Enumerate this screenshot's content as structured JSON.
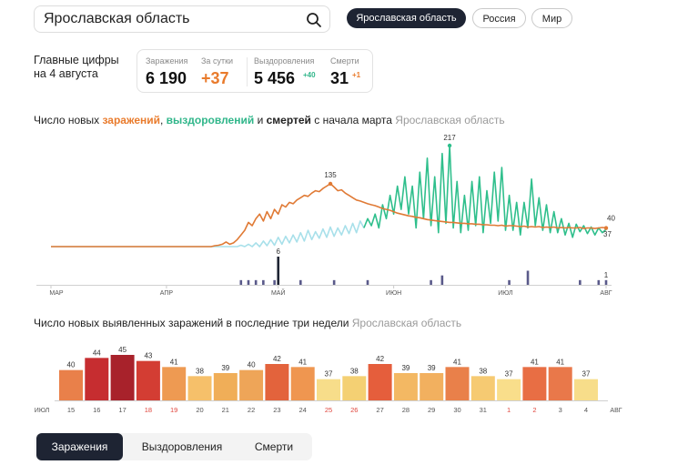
{
  "search": {
    "value": "Ярославская область"
  },
  "regions": [
    {
      "label": "Ярославская область"
    },
    {
      "label": "Россия"
    },
    {
      "label": "Мир"
    }
  ],
  "main_figures": {
    "title": "Главные цифры на 4 августа",
    "stats": [
      {
        "label": "Заражения",
        "value": "6 190",
        "delta": ""
      },
      {
        "label": "За сутки",
        "value": "+37",
        "delta": ""
      },
      {
        "label": "Выздоровления",
        "value": "5 456",
        "delta": "+40"
      },
      {
        "label": "Смерти",
        "value": "31",
        "delta": "+1"
      }
    ]
  },
  "chart1_title": {
    "p1": "Число новых ",
    "p2": "заражений",
    "p3": ", ",
    "p4": "выздоровлений",
    "p5": " и ",
    "p6": "смертей",
    "p7": " с начала марта ",
    "p8": "Ярославская область"
  },
  "chart2_title": {
    "p1": "Число новых выявленных заражений в последние три недели ",
    "p2": "Ярославская область"
  },
  "colors": {
    "infections": "#e07a35",
    "recoveries_first": "#a8e0ea",
    "recoveries_later": "#2fbf8c",
    "deaths": "#5a5a8a",
    "deaths_peak": "#1e2433"
  },
  "chart_data": [
    {
      "type": "line",
      "months": [
        "МАР",
        "АПР",
        "МАЙ",
        "ИЮН",
        "ИЮЛ",
        "АВГ"
      ],
      "series": [
        {
          "name": "заражений",
          "values": [
            0,
            0,
            0,
            0,
            0,
            0,
            0,
            0,
            0,
            0,
            0,
            0,
            0,
            0,
            0,
            0,
            0,
            0,
            0,
            0,
            0,
            0,
            0,
            0,
            0,
            0,
            0,
            0,
            0,
            0,
            0,
            0,
            0,
            0,
            0,
            0,
            0,
            0,
            0,
            0,
            0,
            0,
            0,
            0,
            2,
            3,
            5,
            10,
            5,
            8,
            15,
            25,
            35,
            52,
            45,
            60,
            70,
            55,
            75,
            60,
            80,
            70,
            90,
            85,
            95,
            92,
            100,
            105,
            110,
            108,
            115,
            120,
            118,
            125,
            130,
            135,
            128,
            120,
            122,
            115,
            110,
            105,
            100,
            98,
            95,
            92,
            90,
            88,
            85,
            82,
            80,
            78,
            75,
            72,
            70,
            68,
            66,
            65,
            63,
            62,
            60,
            58,
            57,
            56,
            55,
            54,
            53,
            52,
            52,
            51,
            50,
            50,
            49,
            49,
            48,
            48,
            47,
            47,
            46,
            46,
            45,
            46,
            44,
            45,
            45,
            44,
            43,
            44,
            42,
            43,
            42,
            43,
            41,
            42,
            41,
            42,
            40,
            41,
            40,
            41,
            40,
            40,
            41,
            39,
            40,
            40,
            39,
            40,
            41,
            40
          ]
        },
        {
          "name": "выздоровлений",
          "values": [
            0,
            0,
            0,
            0,
            0,
            0,
            0,
            0,
            0,
            0,
            0,
            0,
            0,
            0,
            0,
            0,
            0,
            0,
            0,
            0,
            0,
            0,
            0,
            0,
            0,
            0,
            0,
            0,
            0,
            0,
            0,
            0,
            0,
            0,
            0,
            0,
            0,
            0,
            0,
            0,
            0,
            0,
            0,
            0,
            0,
            0,
            0,
            0,
            0,
            0,
            0,
            3,
            0,
            5,
            0,
            8,
            0,
            12,
            2,
            15,
            3,
            20,
            5,
            22,
            8,
            25,
            10,
            30,
            12,
            35,
            15,
            32,
            18,
            38,
            20,
            42,
            22,
            40,
            25,
            45,
            28,
            50,
            30,
            55,
            40,
            60,
            45,
            70,
            40,
            90,
            60,
            110,
            70,
            130,
            80,
            150,
            70,
            130,
            40,
            160,
            60,
            190,
            45,
            150,
            30,
            200,
            50,
            217,
            40,
            140,
            30,
            110,
            35,
            140,
            45,
            150,
            30,
            120,
            50,
            160,
            55,
            170,
            35,
            110,
            35,
            95,
            25,
            95,
            40,
            145,
            45,
            105,
            35,
            90,
            30,
            75,
            30,
            60,
            25,
            50,
            20,
            48,
            32,
            45,
            28,
            42,
            25,
            40,
            30,
            37
          ]
        },
        {
          "name": "смертей",
          "values": [
            0,
            0,
            0,
            0,
            0,
            0,
            0,
            0,
            0,
            0,
            0,
            0,
            0,
            0,
            0,
            0,
            0,
            0,
            0,
            0,
            0,
            0,
            0,
            0,
            0,
            0,
            0,
            0,
            0,
            0,
            0,
            0,
            0,
            0,
            0,
            0,
            0,
            0,
            0,
            0,
            0,
            0,
            0,
            0,
            0,
            0,
            0,
            0,
            0,
            0,
            0,
            1,
            0,
            1,
            0,
            1,
            0,
            1,
            0,
            0,
            1,
            6,
            0,
            0,
            0,
            0,
            0,
            1,
            0,
            0,
            0,
            0,
            0,
            0,
            0,
            0,
            1,
            0,
            0,
            0,
            0,
            0,
            0,
            0,
            0,
            1,
            0,
            0,
            0,
            0,
            0,
            0,
            0,
            0,
            0,
            0,
            0,
            0,
            0,
            0,
            0,
            0,
            1,
            0,
            0,
            2,
            0,
            0,
            0,
            0,
            0,
            0,
            0,
            0,
            0,
            0,
            0,
            0,
            0,
            0,
            0,
            0,
            0,
            1,
            0,
            0,
            0,
            0,
            3,
            0,
            0,
            0,
            0,
            0,
            0,
            0,
            0,
            0,
            0,
            0,
            0,
            0,
            1,
            0,
            0,
            0,
            0,
            1,
            0,
            1
          ]
        }
      ],
      "annotations": [
        "135",
        "217",
        "40",
        "37",
        "6",
        "1"
      ]
    },
    {
      "type": "bar",
      "categories": [
        "15",
        "16",
        "17",
        "18",
        "19",
        "20",
        "21",
        "22",
        "23",
        "24",
        "25",
        "26",
        "27",
        "28",
        "29",
        "30",
        "31",
        "1",
        "2",
        "3",
        "4"
      ],
      "values": [
        40,
        44,
        45,
        43,
        41,
        38,
        39,
        40,
        42,
        41,
        37,
        38,
        42,
        39,
        39,
        41,
        38,
        37,
        41,
        41,
        37
      ],
      "colors": [
        "#e9804a",
        "#c62d30",
        "#a8222b",
        "#d33d33",
        "#ee9a52",
        "#f6c06a",
        "#f0ae58",
        "#eea558",
        "#e3633c",
        "#ef9650",
        "#f7dd8a",
        "#f4d073",
        "#e55e3c",
        "#f3b863",
        "#f2b05f",
        "#e9804a",
        "#f6ca72",
        "#f9de8b",
        "#e86e44",
        "#e9784a",
        "#f7dd8a"
      ],
      "red_categories": [
        "18",
        "19",
        "25",
        "26",
        "1",
        "2"
      ],
      "month_labels": [
        "ИЮЛ",
        "АВГ"
      ]
    }
  ],
  "tabs": [
    {
      "label": "Заражения"
    },
    {
      "label": "Выздоровления"
    },
    {
      "label": "Смерти"
    }
  ]
}
